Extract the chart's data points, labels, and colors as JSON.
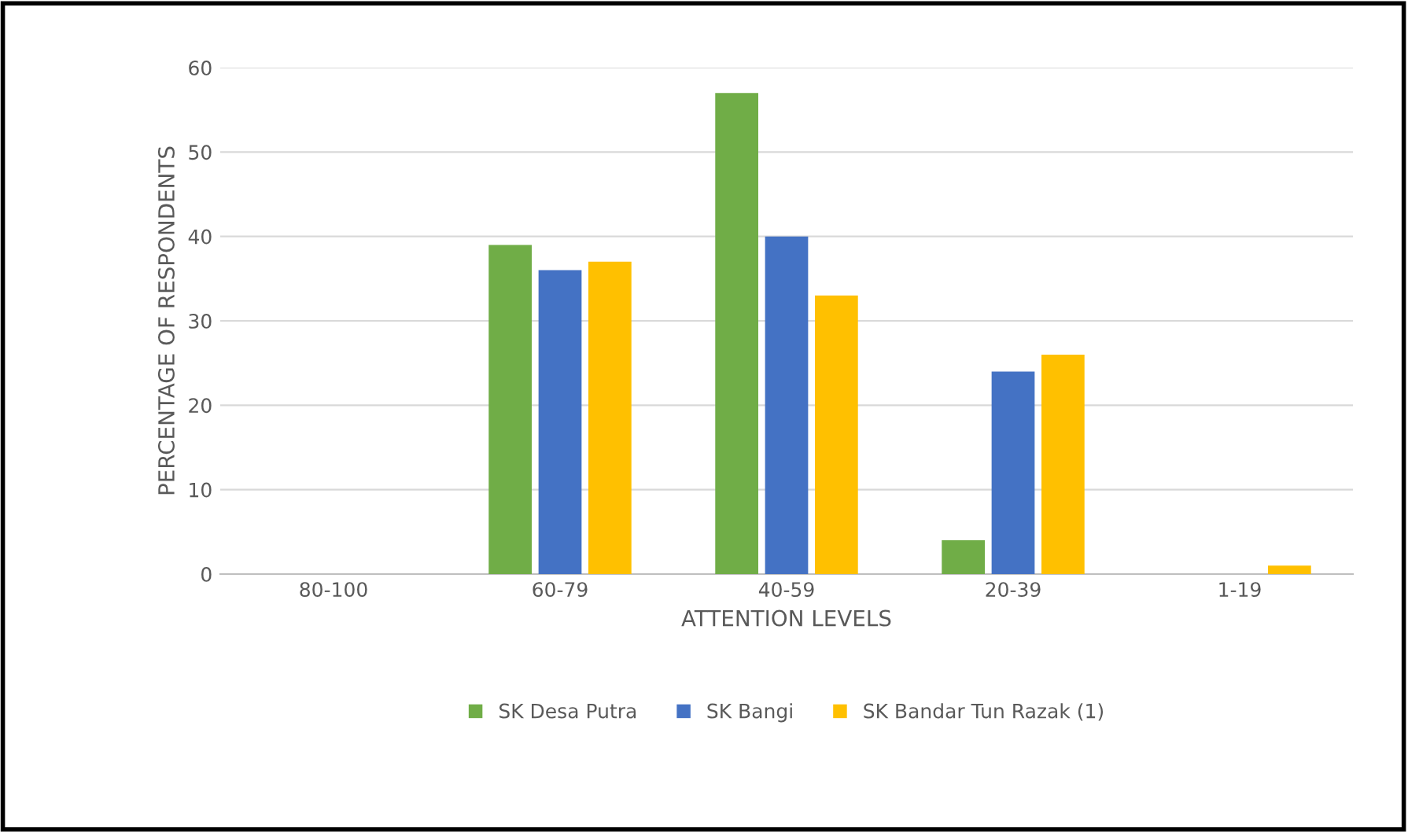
{
  "chart_data": {
    "type": "bar",
    "xlabel": "ATTENTION LEVELS",
    "ylabel": "PERCENTAGE OF RESPONDENTS",
    "categories": [
      "80-100",
      "60-79",
      "40-59",
      "20-39",
      "1-19"
    ],
    "series": [
      {
        "name": "SK Desa Putra",
        "color": "#70ad47",
        "values": [
          0,
          39,
          57,
          4,
          0
        ]
      },
      {
        "name": "SK Bangi",
        "color": "#4472c4",
        "values": [
          0,
          36,
          40,
          24,
          0
        ]
      },
      {
        "name": "SK Bandar Tun Razak (1)",
        "color": "#ffc000",
        "values": [
          0,
          37,
          33,
          26,
          1
        ]
      }
    ],
    "ylim": [
      0,
      60
    ],
    "yticks": [
      0,
      10,
      20,
      30,
      40,
      50,
      60
    ],
    "grid": "y",
    "legend": "bottom"
  }
}
